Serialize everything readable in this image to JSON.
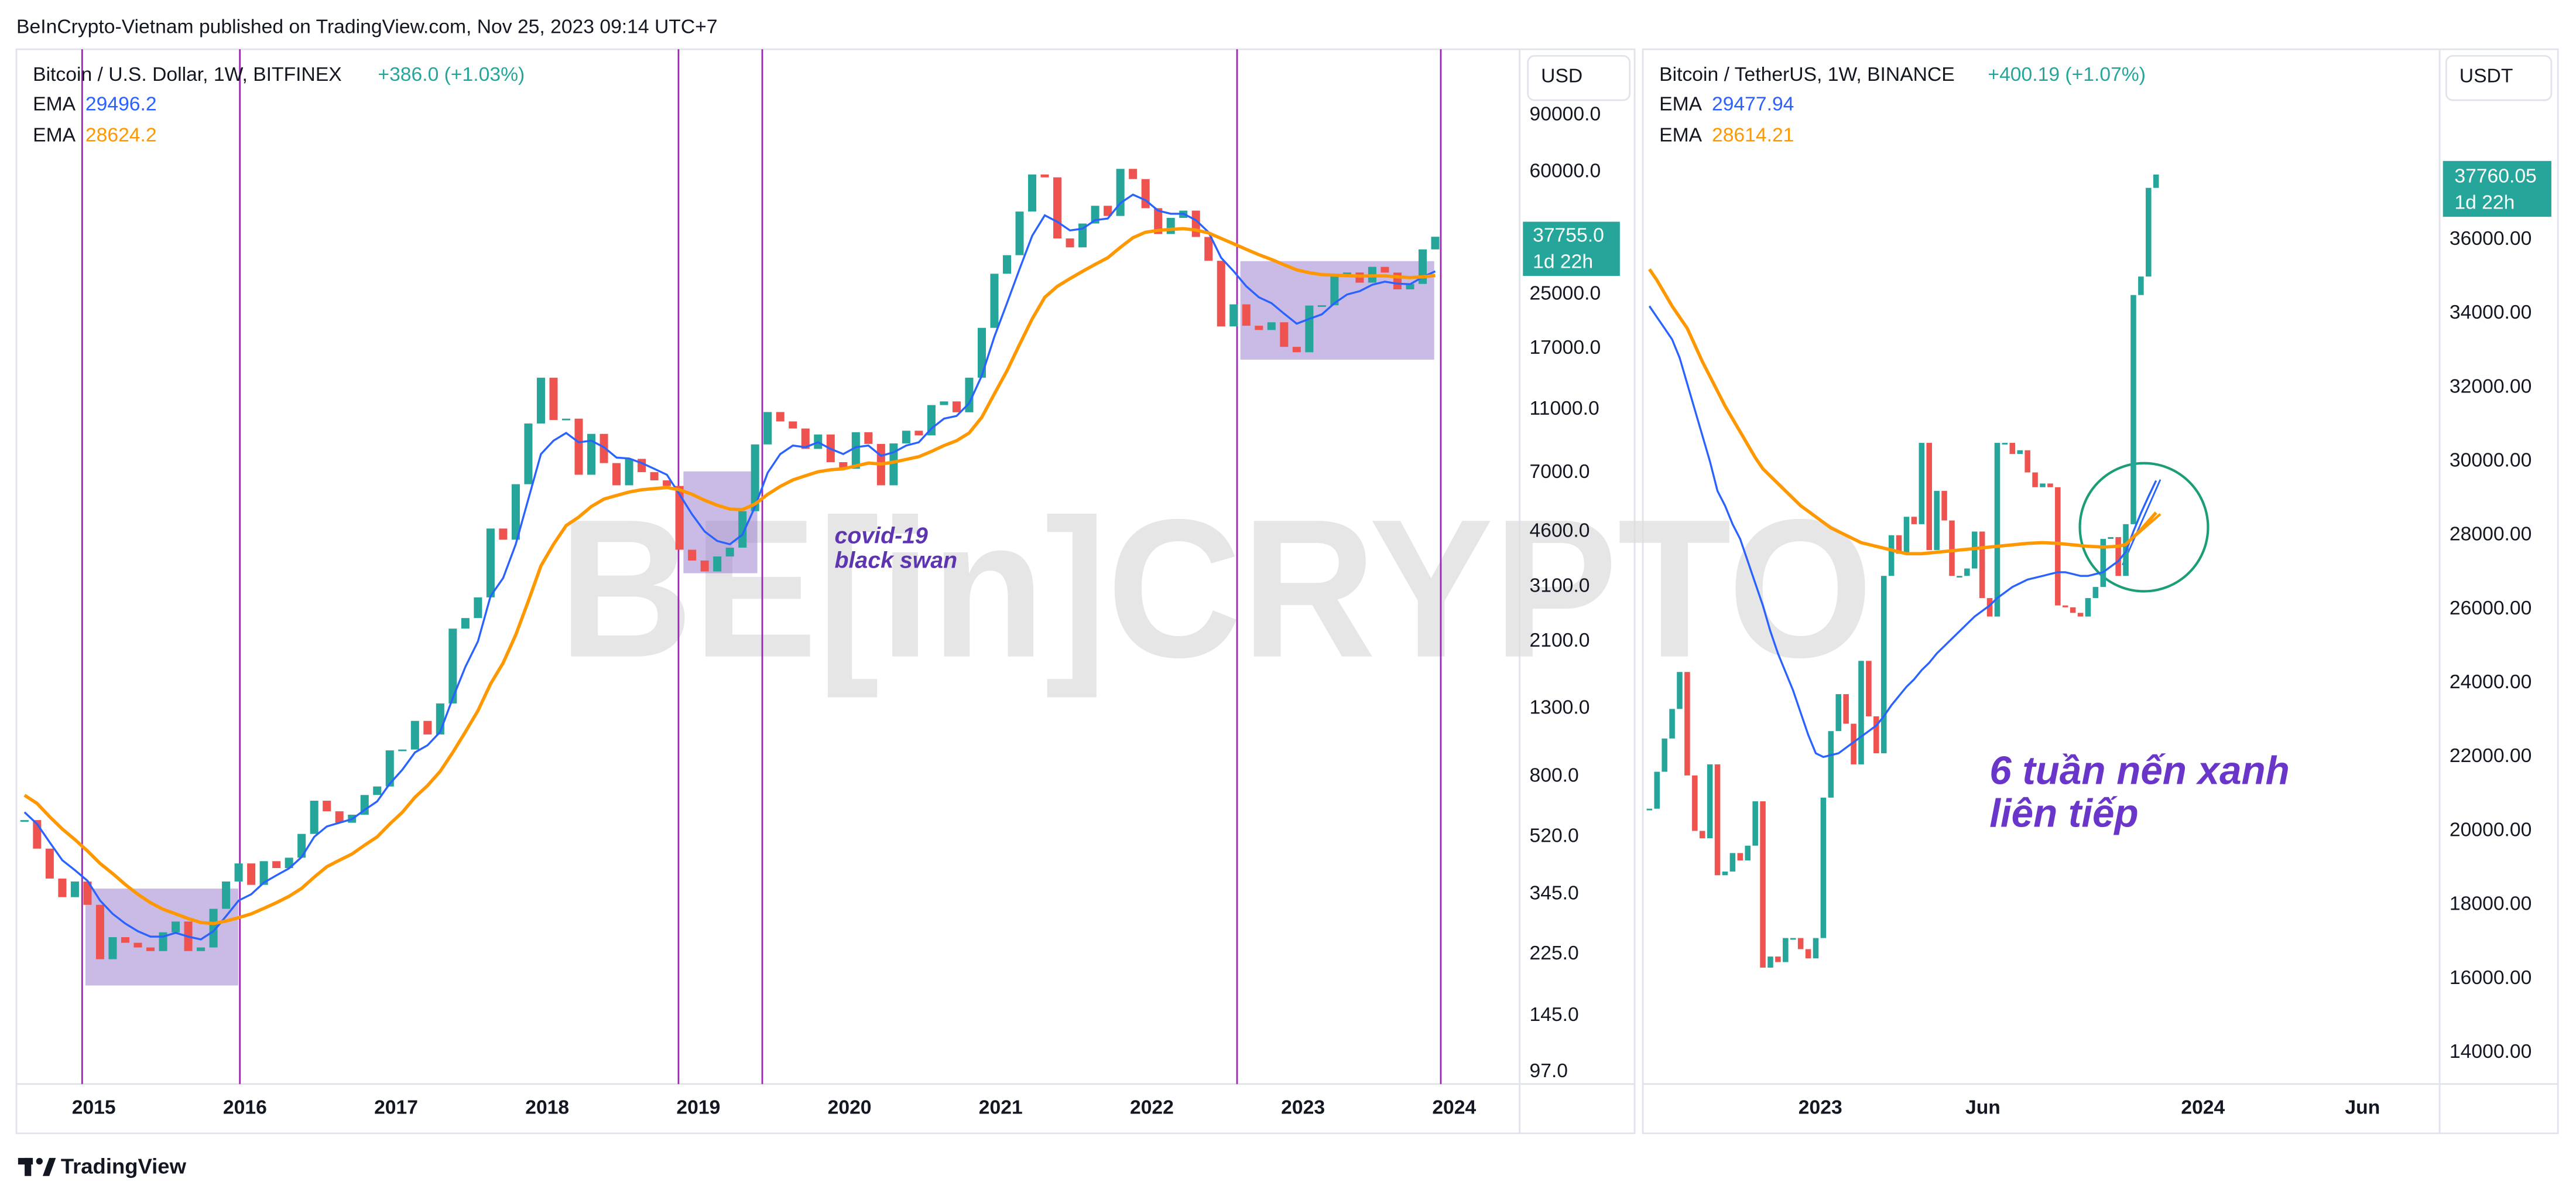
{
  "header": "BeInCrypto-Vietnam published on TradingView.com, Nov 25, 2023 09:14 UTC+7",
  "footer": "TradingView",
  "watermark": "BE[in]CRYPTO",
  "chart_data": [
    {
      "type": "candlestick",
      "title": "Bitcoin / U.S. Dollar, 1W, BITFINEX",
      "change": "+386.0 (+1.03%)",
      "currency": "USD",
      "price_label": "37755.0",
      "countdown": "1d 22h",
      "log_scale": true,
      "grid": false,
      "annotations": [
        "covid-19",
        "black swan"
      ],
      "xlim": [
        -0.38,
        118.7
      ],
      "xticks": [
        {
          "value": 5.5,
          "label": "2015"
        },
        {
          "value": 17.5,
          "label": "2016"
        },
        {
          "value": 29.5,
          "label": "2017"
        },
        {
          "value": 41.5,
          "label": "2018"
        },
        {
          "value": 53.5,
          "label": "2019"
        },
        {
          "value": 65.5,
          "label": "2020"
        },
        {
          "value": 77.5,
          "label": "2021"
        },
        {
          "value": 89.5,
          "label": "2022"
        },
        {
          "value": 101.5,
          "label": "2023"
        },
        {
          "value": 113.5,
          "label": "2024"
        }
      ],
      "ylim": [
        89,
        144000
      ],
      "yticks": [
        {
          "value": 97,
          "label": "97.0"
        },
        {
          "value": 145,
          "label": "145.0"
        },
        {
          "value": 225,
          "label": "225.0"
        },
        {
          "value": 345,
          "label": "345.0"
        },
        {
          "value": 520,
          "label": "520.0"
        },
        {
          "value": 800,
          "label": "800.0"
        },
        {
          "value": 1300,
          "label": "1300.0"
        },
        {
          "value": 2100,
          "label": "2100.0"
        },
        {
          "value": 3100,
          "label": "3100.0"
        },
        {
          "value": 4600,
          "label": "4600.0"
        },
        {
          "value": 7000,
          "label": "7000.0"
        },
        {
          "value": 11000,
          "label": "11000.0"
        },
        {
          "value": 17000,
          "label": "17000.0"
        },
        {
          "value": 25000,
          "label": "25000.0"
        },
        {
          "value": 60000,
          "label": "60000.0"
        },
        {
          "value": 90000,
          "label": "90000.0"
        }
      ],
      "series": [
        {
          "color": "#26a69a",
          "down_color": "#ef5350",
          "values": [
            586,
            478,
            386,
            338,
            378,
            320,
            217,
            254,
            244,
            236,
            230,
            263,
            284,
            230,
            236,
            311,
            378,
            430,
            369,
            437,
            416,
            448,
            531,
            673,
            624,
            575,
            609,
            701,
            745,
            964,
            970,
            1190,
            1080,
            1348,
            2300,
            2480,
            2875,
            4700,
            4340,
            6450,
            9950,
            13800,
            10200,
            10300,
            6900,
            9240,
            7500,
            6400,
            7730,
            7030,
            6630,
            6370,
            4040,
            3740,
            3460,
            3850,
            4100,
            5320,
            8570,
            10800,
            10100,
            9600,
            8300,
            9200,
            7550,
            7200,
            9350,
            8600,
            6400,
            8630,
            9450,
            9140,
            11350,
            11650,
            10780,
            13800,
            19700,
            28990,
            33100,
            45200,
            58900,
            57700,
            37300,
            35000,
            41500,
            47100,
            43800,
            61300,
            57000,
            46300,
            38500,
            43200,
            45500,
            37700,
            31800,
            19900,
            23300,
            20000,
            19400,
            20500,
            17200,
            16550,
            23100,
            23150,
            28500,
            29250,
            27200,
            30450,
            29230,
            25930,
            26960,
            34500,
            37755
          ]
        },
        {
          "name": "EMA",
          "color": "#2962ff",
          "values": [
            620,
            570,
            500,
            440,
            410,
            380,
            330,
            300,
            280,
            265,
            255,
            255,
            262,
            255,
            250,
            265,
            295,
            330,
            345,
            375,
            395,
            415,
            450,
            520,
            560,
            575,
            590,
            630,
            670,
            760,
            840,
            950,
            1000,
            1100,
            1400,
            1750,
            2100,
            2900,
            3300,
            4200,
            5800,
            8000,
            8800,
            9300,
            8700,
            8800,
            8400,
            7800,
            7750,
            7500,
            7200,
            6900,
            6000,
            5200,
            4600,
            4300,
            4200,
            4500,
            5500,
            7000,
            8000,
            8500,
            8400,
            8700,
            8300,
            8000,
            8400,
            8500,
            7900,
            8100,
            8500,
            8700,
            9600,
            10300,
            10500,
            11500,
            14000,
            18500,
            23500,
            30000,
            38000,
            44000,
            42000,
            39500,
            40000,
            42500,
            43000,
            48000,
            51000,
            49000,
            45500,
            44500,
            44500,
            42500,
            39000,
            32500,
            29500,
            26500,
            24500,
            23500,
            21800,
            20300,
            21000,
            21700,
            23500,
            25000,
            25600,
            26800,
            27400,
            27000,
            26900,
            28300,
            29496.2
          ]
        },
        {
          "name": "EMA",
          "color": "#ff9800",
          "values": [
            700,
            660,
            600,
            550,
            510,
            470,
            430,
            400,
            370,
            345,
            325,
            310,
            300,
            290,
            282,
            280,
            285,
            292,
            300,
            312,
            325,
            340,
            360,
            390,
            420,
            440,
            460,
            490,
            520,
            570,
            620,
            690,
            750,
            830,
            950,
            1100,
            1280,
            1550,
            1800,
            2200,
            2800,
            3600,
            4200,
            4800,
            5100,
            5500,
            5800,
            5950,
            6100,
            6200,
            6250,
            6300,
            6200,
            6000,
            5750,
            5550,
            5400,
            5380,
            5600,
            6000,
            6350,
            6650,
            6850,
            7050,
            7150,
            7200,
            7350,
            7500,
            7450,
            7550,
            7700,
            7850,
            8150,
            8500,
            8800,
            9300,
            10400,
            12300,
            14500,
            17500,
            21000,
            24500,
            26500,
            28000,
            29500,
            31000,
            32500,
            35000,
            37500,
            39000,
            39500,
            39800,
            40000,
            39600,
            38800,
            37300,
            35900,
            34500,
            33200,
            32100,
            30900,
            29800,
            29200,
            28800,
            28700,
            28600,
            28500,
            28550,
            28550,
            28350,
            28200,
            28350,
            28624.2
          ]
        }
      ]
    },
    {
      "type": "candlestick",
      "title": "Bitcoin / TetherUS, 1W, BINANCE",
      "change": "+400.19 (+1.07%)",
      "currency": "USDT",
      "price_label": "37760.05",
      "countdown": "1d 22h",
      "log_scale": false,
      "grid": false,
      "annotations": [
        "6 tuần nến xanh",
        "liên tiếp"
      ],
      "xlim": [
        -0.65,
        104.5
      ],
      "xticks": [
        {
          "value": 22.6,
          "label": "2023"
        },
        {
          "value": 44.1,
          "label": "Jun"
        },
        {
          "value": 73.2,
          "label": "2024"
        },
        {
          "value": 94.3,
          "label": "Jun"
        }
      ],
      "ylim": [
        13150,
        41150
      ],
      "yticks": [
        {
          "value": 14000,
          "label": "14000.00"
        },
        {
          "value": 16000,
          "label": "16000.00"
        },
        {
          "value": 18000,
          "label": "18000.00"
        },
        {
          "value": 20000,
          "label": "20000.00"
        },
        {
          "value": 22000,
          "label": "22000.00"
        },
        {
          "value": 24000,
          "label": "24000.00"
        },
        {
          "value": 26000,
          "label": "26000.00"
        },
        {
          "value": 28000,
          "label": "28000.00"
        },
        {
          "value": 30000,
          "label": "30000.00"
        },
        {
          "value": 32000,
          "label": "32000.00"
        },
        {
          "value": 34000,
          "label": "34000.00"
        },
        {
          "value": 36000,
          "label": "36000.00"
        }
      ],
      "series": [
        {
          "color": "#26a69a",
          "down_color": "#ef5350",
          "values": [
            20600,
            21600,
            22500,
            23300,
            24300,
            21500,
            20000,
            19800,
            21800,
            18800,
            18900,
            19400,
            19200,
            19600,
            20800,
            16300,
            16600,
            16450,
            17100,
            17100,
            16800,
            16550,
            17100,
            20900,
            22700,
            23700,
            22900,
            21800,
            24600,
            23100,
            22100,
            26900,
            28000,
            27500,
            28500,
            28300,
            30500,
            27600,
            29200,
            28400,
            26900,
            26900,
            27100,
            28100,
            26300,
            25800,
            30500,
            30500,
            30200,
            30300,
            29700,
            29300,
            29400,
            29300,
            26100,
            26050,
            25900,
            25800,
            26300,
            26600,
            27900,
            27950,
            26900,
            28300,
            34500,
            35000,
            37400,
            37760.05
          ]
        },
        {
          "name": "EMA",
          "color": "#2962ff",
          "values": [
            34200,
            33900,
            33600,
            33300,
            32800,
            32100,
            31400,
            30700,
            30000,
            29200,
            28800,
            28300,
            27900,
            27300,
            26700,
            26100,
            25400,
            24800,
            24300,
            23800,
            23200,
            22600,
            22100,
            22000,
            22050,
            22100,
            22250,
            22400,
            22550,
            22700,
            22850,
            23100,
            23400,
            23650,
            23900,
            24100,
            24350,
            24550,
            24800,
            25000,
            25200,
            25400,
            25600,
            25800,
            25950,
            26100,
            26300,
            26450,
            26600,
            26700,
            26800,
            26850,
            26900,
            26950,
            27000,
            27000,
            26950,
            26900,
            26900,
            26950,
            27000,
            27150,
            27300,
            27550,
            28100,
            28600,
            29050,
            29477.94
          ]
        },
        {
          "name": "EMA",
          "color": "#ff9800",
          "values": [
            35200,
            34900,
            34550,
            34200,
            33900,
            33600,
            33150,
            32700,
            32300,
            31900,
            31500,
            31150,
            30800,
            30450,
            30100,
            29800,
            29600,
            29400,
            29200,
            29000,
            28800,
            28650,
            28500,
            28350,
            28200,
            28100,
            28000,
            27900,
            27800,
            27750,
            27700,
            27650,
            27600,
            27550,
            27500,
            27500,
            27500,
            27520,
            27540,
            27560,
            27580,
            27600,
            27620,
            27640,
            27660,
            27680,
            27700,
            27720,
            27740,
            27760,
            27780,
            27790,
            27800,
            27790,
            27780,
            27760,
            27740,
            27720,
            27700,
            27690,
            27680,
            27690,
            27700,
            27750,
            27950,
            28150,
            28380,
            28614.21
          ]
        }
      ]
    }
  ]
}
